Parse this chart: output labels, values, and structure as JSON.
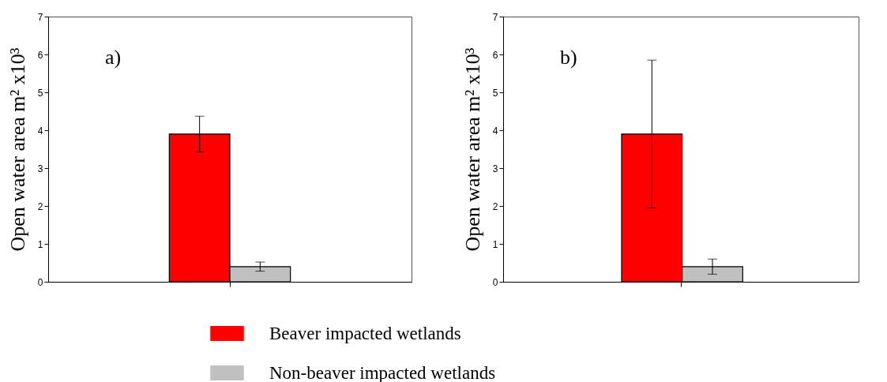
{
  "chart_data": [
    {
      "type": "bar",
      "categories": [
        null
      ],
      "ylabel": "Open water area m² x10³",
      "ylim": [
        0,
        7
      ],
      "yticks": [
        0,
        1,
        2,
        3,
        4,
        5,
        6,
        7
      ],
      "annotations": [
        "a)"
      ],
      "legend": "bottom",
      "grid": false,
      "series": [
        {
          "name": "Beaver impacted wetlands",
          "color": "#ff0000",
          "values": [
            3.9
          ],
          "errors": [
            0.47
          ]
        },
        {
          "name": "Non-beaver impacted wetlands",
          "color": "#c0c0c0",
          "values": [
            0.4
          ],
          "errors": [
            0.12
          ]
        }
      ]
    },
    {
      "type": "bar",
      "categories": [
        null
      ],
      "ylabel": "Open water area m² x10³",
      "ylim": [
        0,
        7
      ],
      "yticks": [
        0,
        1,
        2,
        3,
        4,
        5,
        6,
        7
      ],
      "annotations": [
        "b)"
      ],
      "legend": "bottom",
      "grid": false,
      "series": [
        {
          "name": "Beaver impacted wetlands",
          "color": "#ff0000",
          "values": [
            3.9
          ],
          "errors": [
            1.95
          ]
        },
        {
          "name": "Non-beaver impacted wetlands",
          "color": "#c0c0c0",
          "values": [
            0.4
          ],
          "errors": [
            0.2
          ]
        }
      ]
    }
  ]
}
